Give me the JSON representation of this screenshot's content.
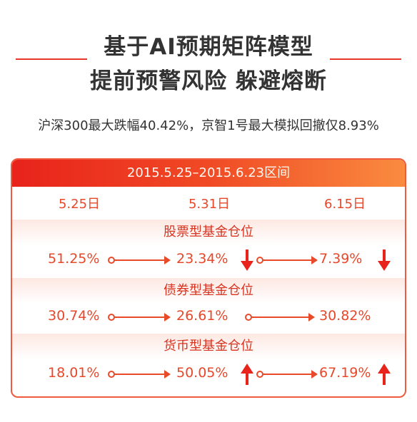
{
  "title": {
    "line1": "基于AI预期矩阵模型",
    "line2": "提前预警风险 躲避熔断"
  },
  "subtitle": "沪深300最大跌幅40.42%，京智1号最大模拟回撤仅8.93%",
  "card": {
    "header": "2015.5.25–2015.6.23区间",
    "dates": [
      "5.25日",
      "5.31日",
      "6.15日"
    ],
    "sections": [
      {
        "label": "股票型基金仓位",
        "values": [
          "51.25%",
          "23.34%",
          "7.39%"
        ],
        "trends": [
          "down",
          "down"
        ]
      },
      {
        "label": "债券型基金仓位",
        "values": [
          "30.74%",
          "26.61%",
          "30.82%"
        ],
        "trends": [
          "none",
          "none"
        ]
      },
      {
        "label": "货币型基金仓位",
        "values": [
          "18.01%",
          "50.05%",
          "67.19%"
        ],
        "trends": [
          "up",
          "up"
        ]
      }
    ]
  },
  "colors": {
    "accent": "#e8231b",
    "value_text": "#e8472a",
    "title_text": "#333333"
  }
}
